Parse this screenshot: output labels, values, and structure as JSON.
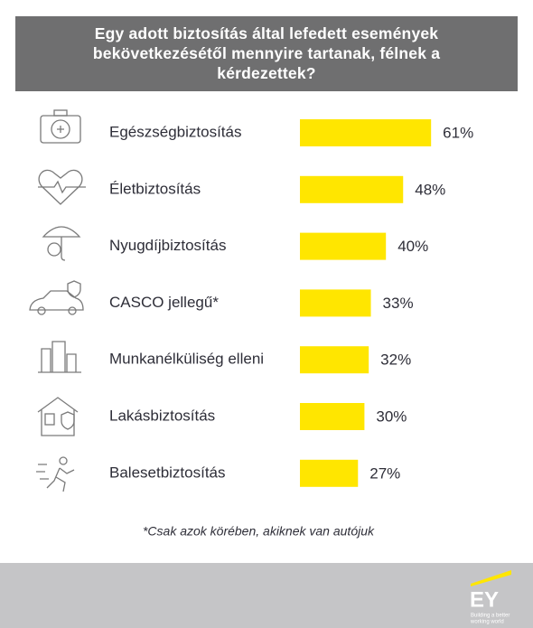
{
  "chart_data": {
    "type": "bar",
    "title": "Egy adott biztosítás által lefedett események bekövetkezésétől mennyire tartanak, félnek a kérdezettek?",
    "categories": [
      "Egészségbiztosítás",
      "Életbiztosítás",
      "Nyugdíjbiztosítás",
      "CASCO jellegű*",
      "Munkanélküliség elleni",
      "Lakásbiztosítás",
      "Balesetbiztosítás"
    ],
    "values": [
      61,
      48,
      40,
      33,
      32,
      30,
      27
    ],
    "value_labels": [
      "61%",
      "48%",
      "40%",
      "33%",
      "32%",
      "30%",
      "27%"
    ],
    "color": "#ffe600",
    "footnote": "*Csak azok körében, akiknek van autójuk"
  },
  "brand": {
    "logo": "EY",
    "tagline": [
      "Building a better",
      "working world"
    ]
  }
}
